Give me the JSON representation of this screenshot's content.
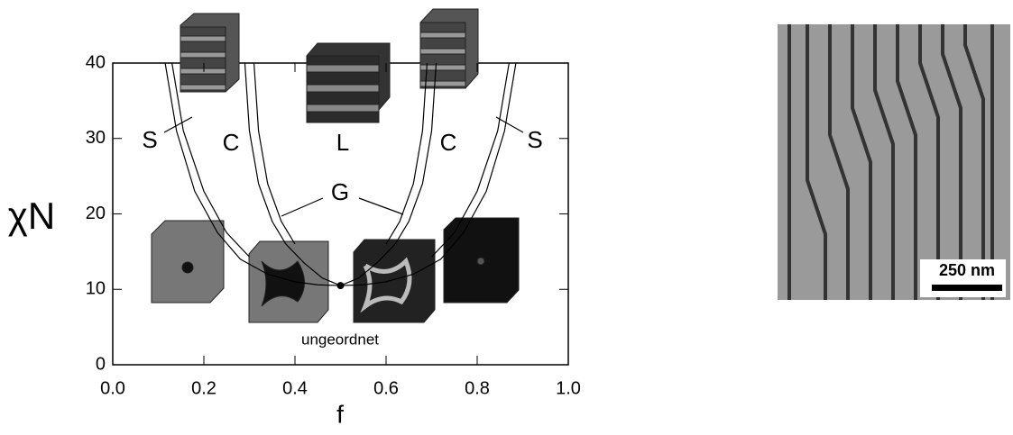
{
  "chart_data": {
    "type": "line",
    "xlabel": "f",
    "ylabel": "χN",
    "xlim": [
      0,
      1
    ],
    "ylim": [
      0,
      40
    ],
    "xticks": [
      {
        "value": 0,
        "label": "0.0"
      },
      {
        "value": 0.2,
        "label": "0.2"
      },
      {
        "value": 0.4,
        "label": "0.4"
      },
      {
        "value": 0.6,
        "label": "0.6"
      },
      {
        "value": 0.8,
        "label": "0.8"
      },
      {
        "value": 1,
        "label": "1.0"
      }
    ],
    "yticks": [
      0,
      10,
      20,
      30,
      40
    ],
    "series": [
      {
        "color": "#000",
        "x": [
          0.115,
          0.14,
          0.18,
          0.23,
          0.28,
          0.34,
          0.4,
          0.45,
          0.5
        ],
        "values": [
          40,
          31,
          23,
          17.5,
          14,
          12,
          11,
          10.6,
          10.5
        ]
      },
      {
        "color": "#000",
        "x": [
          0.13,
          0.155,
          0.2,
          0.25,
          0.3
        ],
        "values": [
          40,
          31,
          23,
          17.5,
          14.3
        ]
      },
      {
        "color": "#000",
        "x": [
          0.29,
          0.3,
          0.32,
          0.35,
          0.38,
          0.42,
          0.46,
          0.5
        ],
        "values": [
          40,
          31,
          24,
          19,
          16,
          13.5,
          11.5,
          10.5
        ]
      },
      {
        "color": "#000",
        "x": [
          0.31,
          0.32,
          0.34,
          0.37,
          0.4
        ],
        "values": [
          40,
          31,
          24,
          19,
          16
        ]
      },
      {
        "color": "#000",
        "x": [
          0.885,
          0.86,
          0.82,
          0.77,
          0.72,
          0.66,
          0.6,
          0.55,
          0.5
        ],
        "values": [
          40,
          31,
          23,
          17.5,
          14,
          12,
          11,
          10.6,
          10.5
        ]
      },
      {
        "color": "#000",
        "x": [
          0.87,
          0.845,
          0.8,
          0.75,
          0.7
        ],
        "values": [
          40,
          31,
          23,
          17.5,
          14.3
        ]
      },
      {
        "color": "#000",
        "x": [
          0.71,
          0.7,
          0.68,
          0.65,
          0.62,
          0.58,
          0.54,
          0.5
        ],
        "values": [
          40,
          31,
          24,
          19,
          16,
          13.5,
          11.5,
          10.5
        ]
      },
      {
        "color": "#000",
        "x": [
          0.69,
          0.68,
          0.66,
          0.63,
          0.6
        ],
        "values": [
          40,
          31,
          24,
          19,
          16
        ]
      }
    ],
    "points": {
      "x": [
        0.5
      ],
      "values": [
        10.5
      ]
    },
    "annotations": [
      "S",
      "C",
      "L",
      "C",
      "S",
      "G",
      "ungeordnet"
    ],
    "scale_bar": "250 nm"
  }
}
